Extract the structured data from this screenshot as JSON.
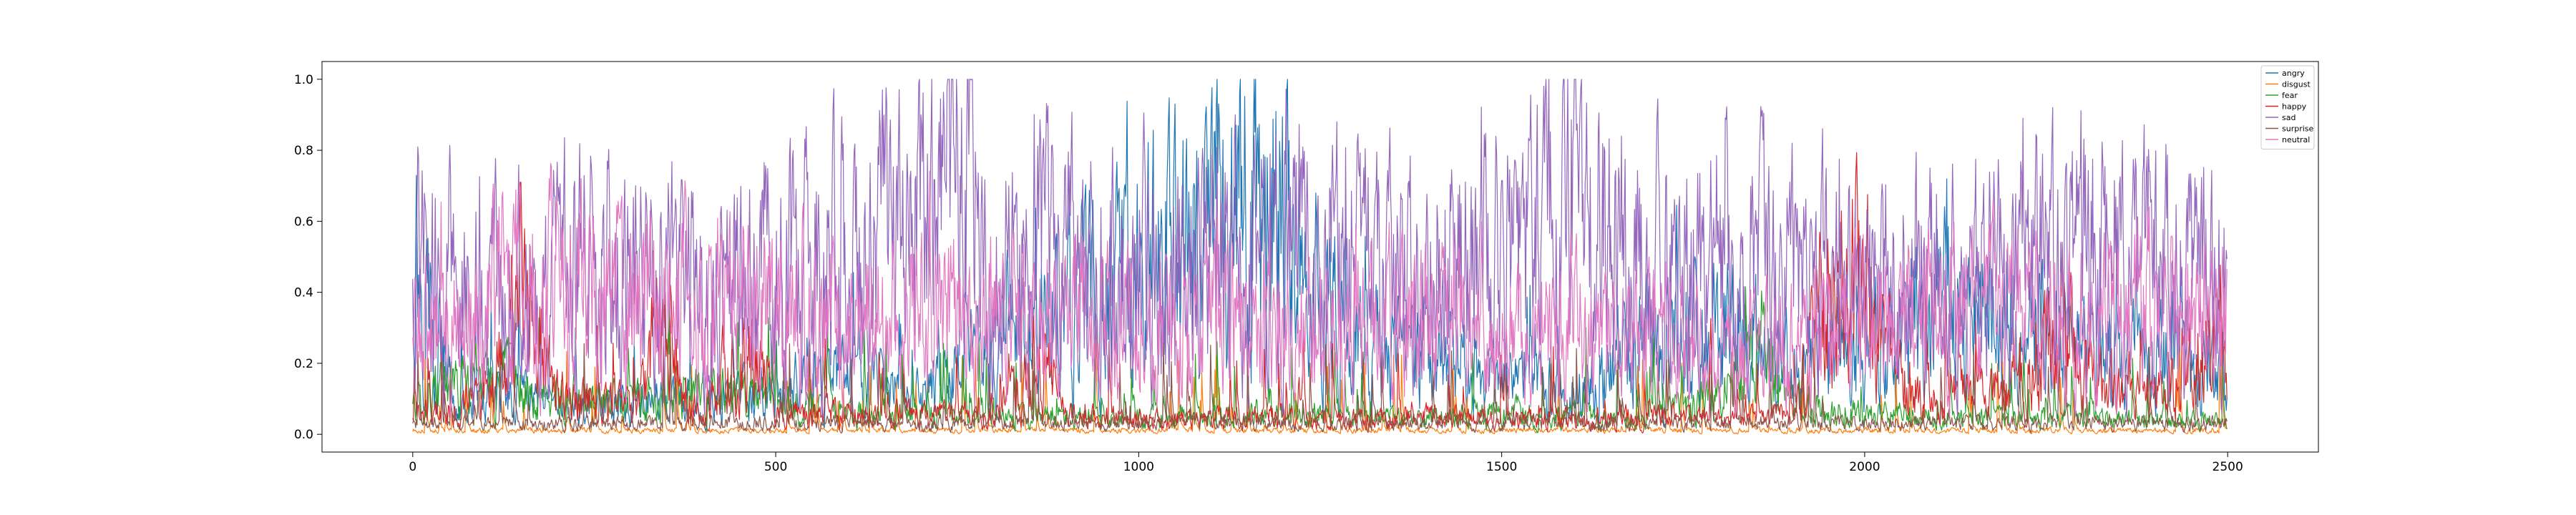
{
  "chart_data": {
    "type": "line",
    "title": "",
    "xlabel": "",
    "ylabel": "",
    "xlim": [
      -125,
      2625
    ],
    "ylim": [
      -0.05,
      1.05
    ],
    "x_ticks": [
      0,
      500,
      1000,
      1500,
      2000,
      2500
    ],
    "y_ticks": [
      0.0,
      0.2,
      0.4,
      0.6,
      0.8,
      1.0
    ],
    "x_tick_labels": [
      "0",
      "500",
      "1000",
      "1500",
      "2000",
      "2500"
    ],
    "y_tick_labels": [
      "0.0",
      "0.2",
      "0.4",
      "0.6",
      "0.8",
      "1.0"
    ],
    "grid": false,
    "legend_position": "top-right",
    "n_points": 2500,
    "series": [
      {
        "name": "angry",
        "color": "#1f77b4",
        "samples": [
          [
            0,
            0.58
          ],
          [
            60,
            0.05
          ],
          [
            120,
            0.12
          ],
          [
            200,
            0.06
          ],
          [
            300,
            0.1
          ],
          [
            400,
            0.08
          ],
          [
            500,
            0.12
          ],
          [
            600,
            0.15
          ],
          [
            700,
            0.1
          ],
          [
            800,
            0.25
          ],
          [
            900,
            0.35
          ],
          [
            1000,
            0.45
          ],
          [
            1100,
            0.55
          ],
          [
            1150,
            0.6
          ],
          [
            1200,
            0.65
          ],
          [
            1250,
            0.35
          ],
          [
            1300,
            0.25
          ],
          [
            1400,
            0.2
          ],
          [
            1500,
            0.15
          ],
          [
            1600,
            0.12
          ],
          [
            1700,
            0.25
          ],
          [
            1800,
            0.3
          ],
          [
            1900,
            0.2
          ],
          [
            2000,
            0.25
          ],
          [
            2100,
            0.35
          ],
          [
            2200,
            0.3
          ],
          [
            2300,
            0.25
          ],
          [
            2400,
            0.2
          ],
          [
            2500,
            0.15
          ]
        ]
      },
      {
        "name": "disgust",
        "color": "#ff7f0e",
        "samples": [
          [
            0,
            0.01
          ],
          [
            500,
            0.01
          ],
          [
            1000,
            0.01
          ],
          [
            1500,
            0.01
          ],
          [
            2000,
            0.01
          ],
          [
            2500,
            0.01
          ]
        ]
      },
      {
        "name": "fear",
        "color": "#2ca02c",
        "samples": [
          [
            0,
            0.1
          ],
          [
            100,
            0.15
          ],
          [
            200,
            0.1
          ],
          [
            300,
            0.08
          ],
          [
            400,
            0.12
          ],
          [
            500,
            0.08
          ],
          [
            600,
            0.06
          ],
          [
            700,
            0.05
          ],
          [
            800,
            0.04
          ],
          [
            900,
            0.05
          ],
          [
            1000,
            0.04
          ],
          [
            1100,
            0.05
          ],
          [
            1200,
            0.06
          ],
          [
            1300,
            0.05
          ],
          [
            1400,
            0.04
          ],
          [
            1500,
            0.06
          ],
          [
            1600,
            0.05
          ],
          [
            1700,
            0.04
          ],
          [
            1800,
            0.1
          ],
          [
            1850,
            0.22
          ],
          [
            1900,
            0.08
          ],
          [
            2000,
            0.05
          ],
          [
            2100,
            0.05
          ],
          [
            2200,
            0.04
          ],
          [
            2300,
            0.05
          ],
          [
            2400,
            0.04
          ],
          [
            2500,
            0.03
          ]
        ]
      },
      {
        "name": "happy",
        "color": "#d62728",
        "samples": [
          [
            0,
            0.05
          ],
          [
            100,
            0.1
          ],
          [
            150,
            0.4
          ],
          [
            200,
            0.1
          ],
          [
            300,
            0.08
          ],
          [
            330,
            0.3
          ],
          [
            400,
            0.06
          ],
          [
            460,
            0.3
          ],
          [
            500,
            0.05
          ],
          [
            600,
            0.06
          ],
          [
            700,
            0.05
          ],
          [
            800,
            0.05
          ],
          [
            870,
            0.2
          ],
          [
            900,
            0.05
          ],
          [
            1000,
            0.04
          ],
          [
            1100,
            0.04
          ],
          [
            1200,
            0.05
          ],
          [
            1300,
            0.04
          ],
          [
            1400,
            0.05
          ],
          [
            1500,
            0.04
          ],
          [
            1600,
            0.04
          ],
          [
            1700,
            0.05
          ],
          [
            1800,
            0.04
          ],
          [
            1900,
            0.05
          ],
          [
            1950,
            0.45
          ],
          [
            2000,
            0.4
          ],
          [
            2050,
            0.15
          ],
          [
            2100,
            0.1
          ],
          [
            2200,
            0.12
          ],
          [
            2280,
            0.35
          ],
          [
            2300,
            0.15
          ],
          [
            2400,
            0.1
          ],
          [
            2480,
            0.25
          ],
          [
            2500,
            0.1
          ]
        ]
      },
      {
        "name": "sad",
        "color": "#9467bd",
        "samples": [
          [
            0,
            0.45
          ],
          [
            100,
            0.4
          ],
          [
            200,
            0.45
          ],
          [
            300,
            0.42
          ],
          [
            400,
            0.4
          ],
          [
            500,
            0.45
          ],
          [
            600,
            0.5
          ],
          [
            700,
            0.55
          ],
          [
            760,
            0.7
          ],
          [
            800,
            0.45
          ],
          [
            900,
            0.5
          ],
          [
            1000,
            0.48
          ],
          [
            1100,
            0.45
          ],
          [
            1200,
            0.55
          ],
          [
            1300,
            0.45
          ],
          [
            1400,
            0.45
          ],
          [
            1500,
            0.48
          ],
          [
            1600,
            0.65
          ],
          [
            1700,
            0.45
          ],
          [
            1800,
            0.5
          ],
          [
            1900,
            0.45
          ],
          [
            2000,
            0.4
          ],
          [
            2100,
            0.45
          ],
          [
            2200,
            0.42
          ],
          [
            2300,
            0.5
          ],
          [
            2400,
            0.45
          ],
          [
            2500,
            0.4
          ]
        ]
      },
      {
        "name": "surprise",
        "color": "#8c564b",
        "samples": [
          [
            0,
            0.03
          ],
          [
            500,
            0.03
          ],
          [
            1000,
            0.03
          ],
          [
            1500,
            0.03
          ],
          [
            2000,
            0.03
          ],
          [
            2500,
            0.03
          ]
        ]
      },
      {
        "name": "neutral",
        "color": "#e377c2",
        "samples": [
          [
            0,
            0.25
          ],
          [
            100,
            0.35
          ],
          [
            200,
            0.4
          ],
          [
            300,
            0.35
          ],
          [
            400,
            0.35
          ],
          [
            500,
            0.38
          ],
          [
            600,
            0.3
          ],
          [
            700,
            0.35
          ],
          [
            800,
            0.3
          ],
          [
            900,
            0.32
          ],
          [
            1000,
            0.28
          ],
          [
            1100,
            0.3
          ],
          [
            1200,
            0.28
          ],
          [
            1300,
            0.3
          ],
          [
            1400,
            0.32
          ],
          [
            1500,
            0.25
          ],
          [
            1600,
            0.3
          ],
          [
            1700,
            0.28
          ],
          [
            1800,
            0.2
          ],
          [
            1900,
            0.25
          ],
          [
            2000,
            0.3
          ],
          [
            2100,
            0.35
          ],
          [
            2200,
            0.32
          ],
          [
            2300,
            0.3
          ],
          [
            2400,
            0.35
          ],
          [
            2500,
            0.3
          ]
        ]
      }
    ]
  }
}
